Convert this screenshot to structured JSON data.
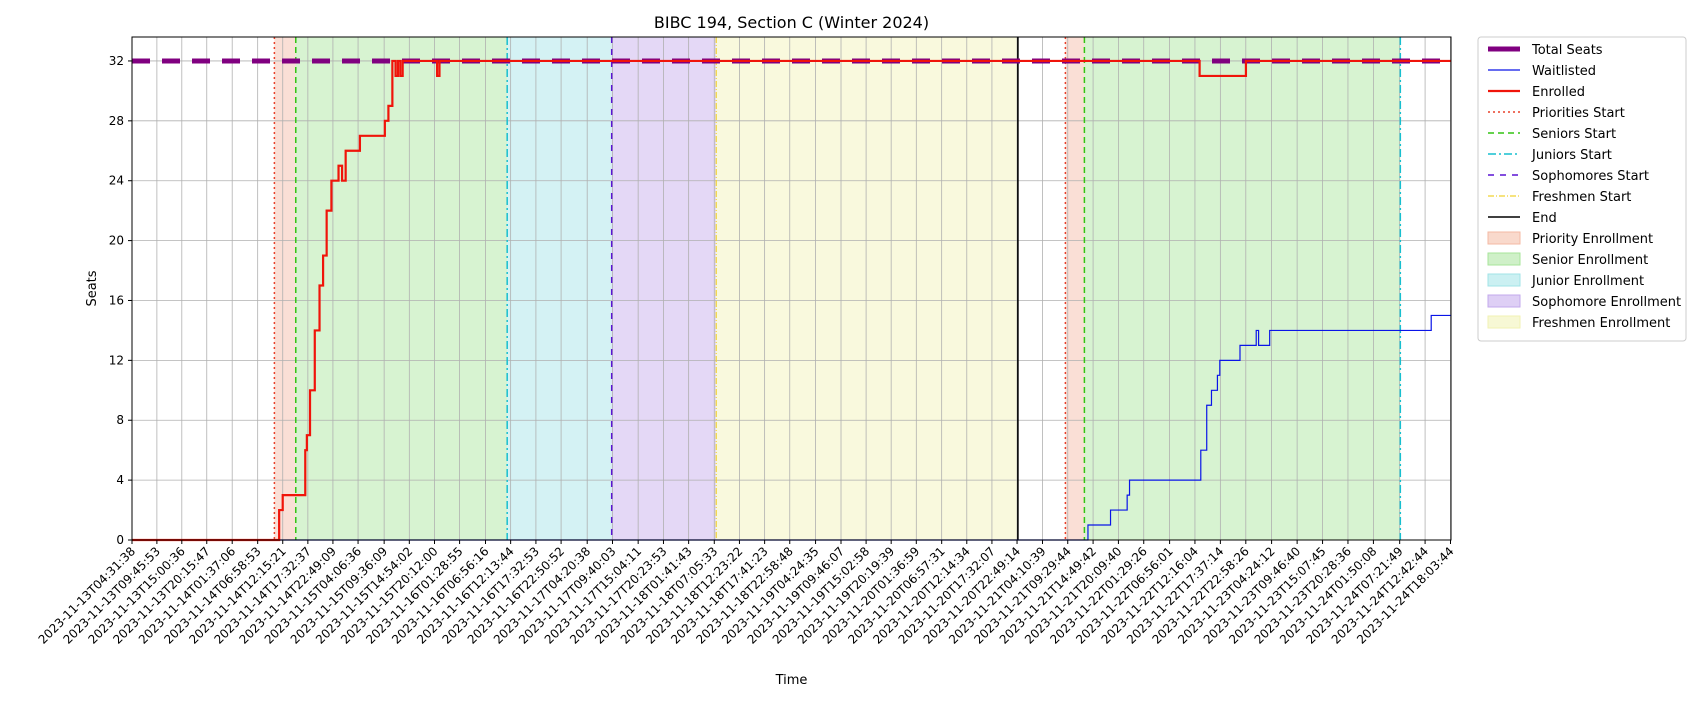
{
  "chart_data": {
    "type": "line",
    "title": "BIBC 194, Section C (Winter 2024)",
    "xlabel": "Time",
    "ylabel": "Seats",
    "xlim": [
      "2023-11-13T04:31:38",
      "2023-11-24T18:10:00"
    ],
    "ylim": [
      0,
      33.6
    ],
    "yticks": [
      0,
      4,
      8,
      12,
      16,
      20,
      24,
      28,
      32
    ],
    "xticks": [
      "2023-11-13T04:31:38",
      "2023-11-13T09:45:53",
      "2023-11-13T15:00:36",
      "2023-11-13T20:15:47",
      "2023-11-14T01:37:06",
      "2023-11-14T06:58:53",
      "2023-11-14T12:15:21",
      "2023-11-14T17:32:37",
      "2023-11-14T22:49:09",
      "2023-11-15T04:06:36",
      "2023-11-15T09:36:09",
      "2023-11-15T14:54:02",
      "2023-11-15T20:12:00",
      "2023-11-16T01:28:55",
      "2023-11-16T06:56:16",
      "2023-11-16T12:13:44",
      "2023-11-16T17:32:53",
      "2023-11-16T22:50:52",
      "2023-11-17T04:20:38",
      "2023-11-17T09:40:03",
      "2023-11-17T15:04:11",
      "2023-11-17T20:23:53",
      "2023-11-18T01:41:43",
      "2023-11-18T07:05:33",
      "2023-11-18T12:23:22",
      "2023-11-18T17:41:23",
      "2023-11-18T22:58:48",
      "2023-11-19T04:24:35",
      "2023-11-19T09:46:07",
      "2023-11-19T15:02:58",
      "2023-11-19T20:19:39",
      "2023-11-20T01:36:59",
      "2023-11-20T06:57:31",
      "2023-11-20T12:14:34",
      "2023-11-20T17:32:07",
      "2023-11-20T22:49:14",
      "2023-11-21T04:10:39",
      "2023-11-21T09:29:44",
      "2023-11-21T14:49:42",
      "2023-11-21T20:09:40",
      "2023-11-22T01:29:26",
      "2023-11-22T06:56:01",
      "2023-11-22T12:16:04",
      "2023-11-22T17:37:14",
      "2023-11-22T22:58:26",
      "2023-11-23T04:24:12",
      "2023-11-23T09:46:40",
      "2023-11-23T15:07:45",
      "2023-11-23T20:28:36",
      "2023-11-24T01:50:08",
      "2023-11-24T07:21:49",
      "2023-11-24T12:42:44",
      "2023-11-24T18:03:44"
    ],
    "grid": true,
    "legend_position": "outside right",
    "regions": [
      {
        "name": "Priority Enrollment",
        "start": "2023-11-14T10:30:00",
        "end": "2023-11-14T15:00:00",
        "color": "#f4b9a3"
      },
      {
        "name": "Senior Enrollment",
        "start": "2023-11-14T15:00:00",
        "end": "2023-11-16T11:30:00",
        "color": "#a7e49a"
      },
      {
        "name": "Junior Enrollment",
        "start": "2023-11-16T11:30:00",
        "end": "2023-11-17T09:30:00",
        "color": "#a0e3e7"
      },
      {
        "name": "Sophomore Enrollment",
        "start": "2023-11-17T09:30:00",
        "end": "2023-11-18T07:30:00",
        "color": "#c3a8ec"
      },
      {
        "name": "Freshmen Enrollment",
        "start": "2023-11-18T07:30:00",
        "end": "2023-11-20T23:00:00",
        "color": "#f1f2b3"
      },
      {
        "name": "Priority Enrollment",
        "start": "2023-11-21T09:00:00",
        "end": "2023-11-21T13:00:00",
        "color": "#f4b9a3"
      },
      {
        "name": "Senior Enrollment",
        "start": "2023-11-21T13:00:00",
        "end": "2023-11-24T07:30:00",
        "color": "#a7e49a"
      }
    ],
    "vlines": [
      {
        "name": "Priorities Start",
        "x": "2023-11-14T10:30:00",
        "color": "#e8402a",
        "dash": "2,3",
        "width": 1.5
      },
      {
        "name": "Seniors Start",
        "x": "2023-11-14T15:00:00",
        "color": "#33c414",
        "dash": "6,4",
        "width": 1.5
      },
      {
        "name": "Juniors Start",
        "x": "2023-11-16T11:30:00",
        "color": "#17bfcf",
        "dash": "8,3,2,3",
        "width": 1.5
      },
      {
        "name": "Sophomores Start",
        "x": "2023-11-17T09:30:00",
        "color": "#5a14d4",
        "dash": "6,6",
        "width": 1.5
      },
      {
        "name": "Freshmen Start",
        "x": "2023-11-18T07:30:00",
        "color": "#f0d232",
        "dash": "6,2,1,2",
        "width": 1.2
      },
      {
        "name": "End",
        "x": "2023-11-20T23:00:00",
        "color": "#000000",
        "dash": "",
        "width": 1.6
      },
      {
        "name": "Priorities Start",
        "x": "2023-11-21T09:00:00",
        "color": "#e8402a",
        "dash": "2,3",
        "width": 1.5
      },
      {
        "name": "Seniors Start",
        "x": "2023-11-21T13:00:00",
        "color": "#33c414",
        "dash": "6,4",
        "width": 1.5
      },
      {
        "name": "Juniors Start",
        "x": "2023-11-24T07:30:00",
        "color": "#17bfcf",
        "dash": "8,3,2,3",
        "width": 1.5
      }
    ],
    "series": [
      {
        "name": "Total Seats",
        "color": "#800080",
        "width": 5,
        "dash": "18,12",
        "step": true,
        "x": [
          "2023-11-13T04:31:38",
          "2023-11-24T18:10:00"
        ],
        "y": [
          32,
          32
        ]
      },
      {
        "name": "Waitlisted",
        "color": "#0a14e8",
        "width": 1.2,
        "dash": "",
        "step": true,
        "x": [
          "2023-11-13T04:31:38",
          "2023-11-21T11:00:00",
          "2023-11-21T13:45:00",
          "2023-11-21T18:30:00",
          "2023-11-21T22:00:00",
          "2023-11-21T22:30:00",
          "2023-11-22T13:00:00",
          "2023-11-22T13:30:00",
          "2023-11-22T14:45:00",
          "2023-11-22T15:45:00",
          "2023-11-22T17:00:00",
          "2023-11-22T17:30:00",
          "2023-11-22T19:45:00",
          "2023-11-22T21:45:00",
          "2023-11-23T01:10:00",
          "2023-11-23T01:40:00",
          "2023-11-23T04:00:00",
          "2023-11-24T14:00:00"
        ],
        "y": [
          0,
          0,
          1,
          2,
          3,
          4,
          4,
          6,
          9,
          10,
          11,
          12,
          12,
          13,
          14,
          13,
          14,
          15
        ]
      },
      {
        "name": "Enrolled",
        "color": "#f0140a",
        "width": 2.2,
        "dash": "",
        "step": true,
        "x": [
          "2023-11-13T04:31:38",
          "2023-11-14T11:30:00",
          "2023-11-14T12:15:00",
          "2023-11-14T13:30:00",
          "2023-11-14T17:00:00",
          "2023-11-14T17:20:00",
          "2023-11-14T18:00:00",
          "2023-11-14T19:00:00",
          "2023-11-14T20:00:00",
          "2023-11-14T20:45:00",
          "2023-11-14T21:30:00",
          "2023-11-14T22:30:00",
          "2023-11-15T00:00:00",
          "2023-11-15T00:45:00",
          "2023-11-15T01:30:00",
          "2023-11-15T04:30:00",
          "2023-11-15T09:45:00",
          "2023-11-15T10:30:00",
          "2023-11-15T11:20:00",
          "2023-11-15T12:00:00",
          "2023-11-15T12:30:00",
          "2023-11-15T13:00:00",
          "2023-11-15T13:30:00",
          "2023-11-15T20:45:00",
          "2023-11-15T21:15:00",
          "2023-11-22T13:15:00",
          "2023-11-22T23:00:00"
        ],
        "y": [
          0,
          2,
          3,
          3,
          6,
          7,
          10,
          14,
          17,
          19,
          22,
          24,
          25,
          24,
          26,
          27,
          28,
          29,
          32,
          31,
          32,
          31,
          32,
          31,
          32,
          31,
          32
        ]
      }
    ],
    "legend": [
      {
        "label": "Total Seats",
        "kind": "line",
        "color": "#800080",
        "width": 5,
        "dash": ""
      },
      {
        "label": "Waitlisted",
        "kind": "line",
        "color": "#0a14e8",
        "width": 1.2,
        "dash": ""
      },
      {
        "label": "Enrolled",
        "kind": "line",
        "color": "#f0140a",
        "width": 2.2,
        "dash": ""
      },
      {
        "label": "Priorities Start",
        "kind": "line",
        "color": "#e8402a",
        "width": 1.5,
        "dash": "2,3"
      },
      {
        "label": "Seniors Start",
        "kind": "line",
        "color": "#33c414",
        "width": 1.5,
        "dash": "6,4"
      },
      {
        "label": "Juniors Start",
        "kind": "line",
        "color": "#17bfcf",
        "width": 1.5,
        "dash": "8,3,2,3"
      },
      {
        "label": "Sophomores Start",
        "kind": "line",
        "color": "#5a14d4",
        "width": 1.5,
        "dash": "6,6"
      },
      {
        "label": "Freshmen Start",
        "kind": "line",
        "color": "#f0d232",
        "width": 1.2,
        "dash": "6,2,1,2"
      },
      {
        "label": "End",
        "kind": "line",
        "color": "#000000",
        "width": 1.6,
        "dash": ""
      },
      {
        "label": "Priority Enrollment",
        "kind": "patch",
        "color": "#f4b9a3"
      },
      {
        "label": "Senior Enrollment",
        "kind": "patch",
        "color": "#a7e49a"
      },
      {
        "label": "Junior Enrollment",
        "kind": "patch",
        "color": "#a0e3e7"
      },
      {
        "label": "Sophomore Enrollment",
        "kind": "patch",
        "color": "#c3a8ec"
      },
      {
        "label": "Freshmen Enrollment",
        "kind": "patch",
        "color": "#f1f2b3"
      }
    ]
  }
}
